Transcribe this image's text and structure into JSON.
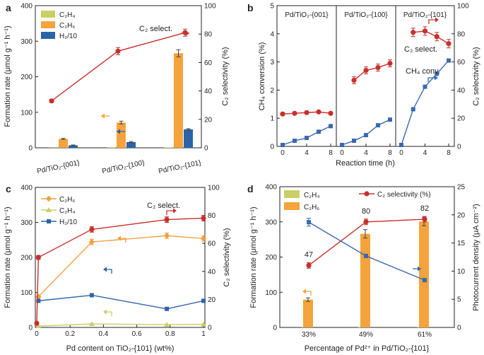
{
  "colors": {
    "c2h4": "#c9cf66",
    "c2h6": "#f5a33c",
    "h2": "#2c64a8",
    "sel": "#c8302c",
    "ch4": "#3a68b0",
    "orange_line": "#f0a040"
  },
  "panel_a": {
    "label": "a",
    "ylabel": "Formation rate (μmol g⁻¹ h⁻¹)",
    "y2label": "C₂ selectivity (%)",
    "legend": [
      "C₂H₄",
      "C₂H₆",
      "H₂/10"
    ],
    "annotation": "C₂ select."
  },
  "panel_b": {
    "label": "b",
    "ylabel": "CH₄ conversion (%)",
    "y2label": "C₂ selectivity (%)",
    "xlabel": "Reaction time (h)",
    "sub_titles": [
      "Pd/TiO₂-{001}",
      "Pd/TiO₂-{100}",
      "Pd/TiO₂-{101}"
    ],
    "annot_sel": "C₂ select.",
    "annot_conv": "CH₄ conv."
  },
  "panel_c": {
    "label": "c",
    "ylabel": "Formation rate (μmol g⁻¹ h⁻¹)",
    "y2label": "C₂ selectivity (%)",
    "xlabel": "Pd content on TiO₂-{101} (wt%)",
    "legend": [
      "C₂H₆",
      "C₂H₄",
      "H₂/10"
    ],
    "annotation": "C₂ select."
  },
  "panel_d": {
    "label": "d",
    "ylabel": "Formation rate (μmol g⁻¹ h⁻¹)",
    "y2label": "Photocurrent density (μA cm⁻²)",
    "xlabel": "Percentage of Pd²⁺ in Pd/TiO₂-{101}",
    "legend_bars": [
      "C₂H₄",
      "C₂H₆"
    ],
    "legend_sel": "C₂ selectivity (%)"
  },
  "chart_data": [
    {
      "id": "a",
      "type": "bar",
      "categories": [
        "Pd/TiO₂-{001}",
        "Pd/TiO₂-{100}",
        "Pd/TiO₂-{101}"
      ],
      "ylim": [
        0,
        400
      ],
      "y2lim": [
        0,
        100
      ],
      "yticks": [
        0,
        100,
        200,
        300,
        400
      ],
      "y2ticks": [
        0,
        20,
        40,
        60,
        80,
        100
      ],
      "series": [
        {
          "name": "C₂H₄",
          "values": [
            0.5,
            0.8,
            1.0
          ]
        },
        {
          "name": "C₂H₆",
          "values": [
            25,
            71,
            266
          ],
          "err": [
            1.5,
            4,
            10
          ]
        },
        {
          "name": "H₂/10",
          "values": [
            7,
            16,
            52
          ],
          "err": [
            1,
            1.5,
            2
          ]
        }
      ],
      "line": {
        "name": "C₂ selectivity",
        "values": [
          33,
          68,
          81
        ],
        "err": [
          1,
          2.5,
          2.5
        ]
      }
    },
    {
      "id": "b",
      "type": "line",
      "ylim": [
        0,
        5
      ],
      "y2lim": [
        0,
        100
      ],
      "yticks": [
        0,
        1,
        2,
        3,
        4,
        5
      ],
      "y2ticks": [
        0,
        20,
        40,
        60,
        80,
        100
      ],
      "xticks": [
        0,
        4,
        8
      ],
      "subpanels": [
        {
          "x": [
            0,
            2,
            4,
            6,
            8
          ],
          "ch4": [
            0.05,
            0.2,
            0.3,
            0.52,
            0.72
          ],
          "sel": [
            23,
            23.5,
            24,
            24.5,
            23.5
          ],
          "sel_err": [
            0.8,
            0.8,
            0.8,
            0.8,
            0.8
          ]
        },
        {
          "x": [
            0,
            2,
            4,
            6,
            8
          ],
          "ch4": [
            0.05,
            0.2,
            0.4,
            0.75,
            0.95
          ],
          "sel": [
            null,
            47,
            54,
            56,
            59
          ],
          "sel_err": [
            0,
            2.5,
            2.5,
            2.5,
            2.5
          ]
        },
        {
          "x": [
            0,
            2,
            4,
            6,
            8
          ],
          "ch4": [
            0.05,
            1.32,
            2.12,
            2.58,
            3.05
          ],
          "sel": [
            null,
            81,
            82,
            78,
            73
          ],
          "sel_err": [
            0,
            3,
            3,
            3,
            3
          ]
        }
      ]
    },
    {
      "id": "c",
      "type": "line",
      "x": [
        0,
        0.01,
        0.33,
        0.78,
        1.0
      ],
      "xlim": [
        0,
        1.0
      ],
      "xticks": [
        0,
        0.2,
        0.4,
        0.6,
        0.8,
        1.0
      ],
      "ylim": [
        0,
        400
      ],
      "y2lim": [
        0,
        100
      ],
      "yticks": [
        0,
        100,
        200,
        300,
        400
      ],
      "y2ticks": [
        0,
        20,
        40,
        60,
        80,
        100
      ],
      "series": [
        {
          "name": "C₂H₆",
          "values": [
            null,
            88,
            244,
            262,
            254
          ],
          "err": [
            0,
            3,
            8,
            8,
            8
          ]
        },
        {
          "name": "C₂H₄",
          "values": [
            null,
            4,
            10,
            8,
            9
          ]
        },
        {
          "name": "H₂/10",
          "values": [
            null,
            76,
            92,
            53,
            76
          ]
        },
        {
          "name": "C₂ selectivity",
          "values": [
            3,
            50,
            70,
            77,
            78
          ],
          "err": [
            0,
            1.5,
            2,
            2,
            2
          ]
        }
      ]
    },
    {
      "id": "d",
      "type": "bar",
      "categories": [
        "33%",
        "49%",
        "61%"
      ],
      "ylim": [
        0,
        400
      ],
      "y2lim": [
        0,
        25
      ],
      "yticks": [
        0,
        100,
        200,
        300,
        400
      ],
      "y2ticks": [
        0,
        5,
        10,
        15,
        20,
        25
      ],
      "series": [
        {
          "name": "C₂H₄",
          "values": [
            0.5,
            1.0,
            1.5
          ]
        },
        {
          "name": "C₂H₆",
          "values": [
            79,
            266,
            301
          ],
          "err": [
            5,
            12,
            12
          ]
        }
      ],
      "selectivity": {
        "values": [
          47,
          80,
          82
        ],
        "labels": [
          "47",
          "80",
          "82"
        ]
      },
      "photocurrent": {
        "values": [
          18.7,
          12.7,
          8.4
        ],
        "err": [
          0.7,
          0.3,
          0.3
        ]
      }
    }
  ]
}
